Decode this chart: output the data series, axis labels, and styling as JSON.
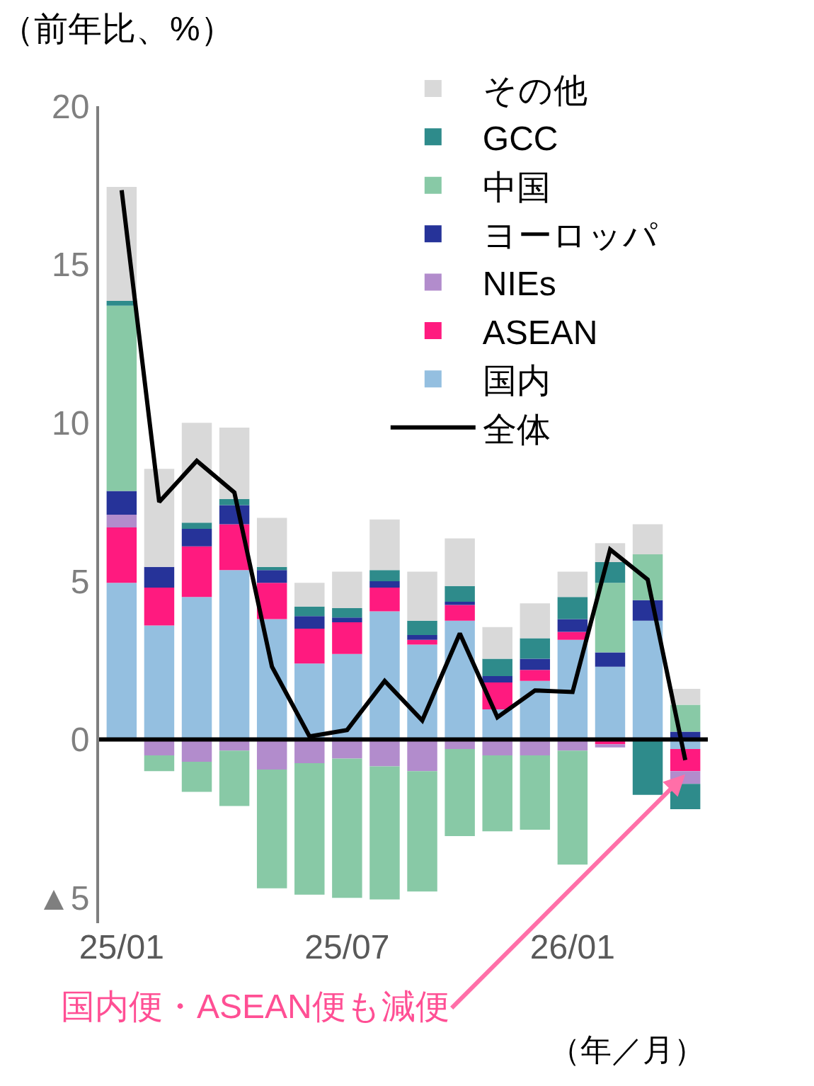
{
  "chart_data": {
    "type": "bar",
    "stacked": true,
    "title": "（前年比、%）",
    "categories": [
      "25/01",
      null,
      null,
      null,
      null,
      null,
      "25/07",
      null,
      null,
      null,
      null,
      null,
      "26/01",
      null,
      null,
      null
    ],
    "series": [
      {
        "name": "国内",
        "color": "#94bfe0",
        "values": [
          4.95,
          3.6,
          4.5,
          5.35,
          3.8,
          2.4,
          2.7,
          4.05,
          3.0,
          3.75,
          0.95,
          1.85,
          3.15,
          2.3,
          3.75,
          -0.3
        ]
      },
      {
        "name": "ASEAN",
        "color": "#ff1a7f",
        "values": [
          1.75,
          1.2,
          1.6,
          1.45,
          1.15,
          1.1,
          1.0,
          0.75,
          0.15,
          0.5,
          0.85,
          0.35,
          0.25,
          -0.15,
          0,
          -0.7
        ]
      },
      {
        "name": "NIEs",
        "color": "#b28ccc",
        "values": [
          0.4,
          -0.5,
          -0.7,
          -0.35,
          -0.95,
          -0.75,
          -0.6,
          -0.85,
          -1.0,
          -0.3,
          -0.5,
          -0.5,
          -0.35,
          -0.1,
          0,
          -0.4
        ]
      },
      {
        "name": "ヨーロッパ",
        "color": "#263399",
        "values": [
          0.75,
          0.65,
          0.55,
          0.6,
          0.4,
          0.4,
          0.15,
          0.2,
          0.15,
          0.1,
          0.2,
          0.35,
          0.4,
          0.45,
          0.65,
          0.25
        ]
      },
      {
        "name": "中国",
        "color": "#88c9a6",
        "values": [
          5.85,
          -0.5,
          -0.95,
          -1.75,
          -3.75,
          -4.15,
          -4.4,
          -4.2,
          -3.8,
          -2.75,
          -2.4,
          -2.35,
          -3.6,
          2.2,
          1.45,
          0.85
        ]
      },
      {
        "name": "GCC",
        "color": "#2e8b8b",
        "values": [
          0.15,
          0,
          0.2,
          0.2,
          0.1,
          0.3,
          0.3,
          0.35,
          0.45,
          0.5,
          0.55,
          0.65,
          0.7,
          0.65,
          -1.75,
          -0.8
        ]
      },
      {
        "name": "その他",
        "color": "#d9d9d9",
        "values": [
          3.6,
          3.1,
          3.15,
          2.25,
          1.55,
          0.75,
          1.15,
          1.6,
          1.55,
          1.5,
          1.0,
          1.1,
          0.8,
          0.6,
          0.95,
          0.5
        ]
      },
      {
        "name": "全体",
        "type": "line",
        "color": "#000000",
        "values": [
          17.35,
          7.5,
          8.8,
          7.8,
          2.3,
          0.1,
          0.3,
          1.85,
          0.6,
          3.35,
          0.7,
          1.55,
          1.5,
          6.0,
          5.05,
          -0.65
        ]
      }
    ],
    "ylim": [
      -5.8,
      20
    ],
    "yticks": [
      20,
      15,
      10,
      5,
      0,
      {
        "value": -5,
        "label": "▲5"
      }
    ],
    "ref_lines": [
      {
        "axis": "y",
        "value": 0,
        "color": "#000000",
        "line_style": "solid"
      }
    ],
    "legend": "top right",
    "marker": "none",
    "line_style": "solid",
    "annotations": [
      "国内便・ASEAN便も減便",
      "（年／月）"
    ]
  }
}
